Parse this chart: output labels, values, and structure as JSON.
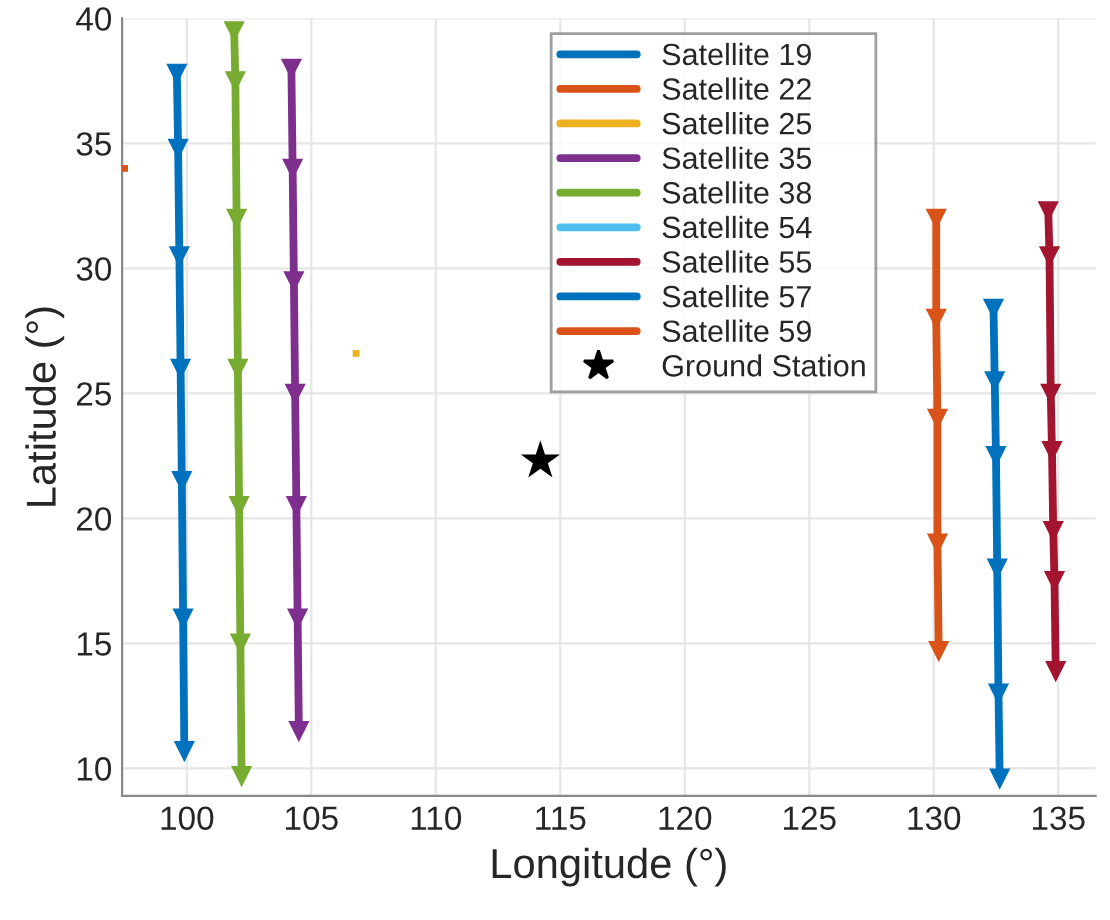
{
  "chart_data": {
    "type": "line",
    "xlabel": "Longitude (°)",
    "ylabel": "Latitude (°)",
    "xlim": [
      97.4,
      136.5
    ],
    "ylim": [
      8.9,
      40
    ],
    "xticks": [
      100,
      105,
      110,
      115,
      120,
      125,
      130,
      135
    ],
    "yticks": [
      10,
      15,
      20,
      25,
      30,
      35,
      40
    ],
    "grid": true,
    "legend": "top right",
    "marker": "triangle",
    "line_style": "solid",
    "series": [
      {
        "name": "Satellite 19",
        "color": "#0072bd",
        "x": [
          99.6,
          99.65,
          99.7,
          99.75,
          99.8,
          99.85,
          99.9
        ],
        "values": [
          37.8,
          34.8,
          30.5,
          26.0,
          21.5,
          16.0,
          10.7
        ]
      },
      {
        "name": "Satellite 22",
        "color": "#d95319",
        "type": "scatter",
        "x": [
          97.5
        ],
        "values": [
          34.0
        ],
        "marker": "square"
      },
      {
        "name": "Satellite 25",
        "color": "#edb120",
        "type": "scatter",
        "x": [
          106.8
        ],
        "values": [
          26.6
        ],
        "marker": "square"
      },
      {
        "name": "Satellite 35",
        "color": "#7e2f8e",
        "x": [
          104.2,
          104.25,
          104.3,
          104.35,
          104.4,
          104.45,
          104.5
        ],
        "values": [
          38.0,
          34.0,
          29.5,
          25.0,
          20.5,
          16.0,
          11.5
        ]
      },
      {
        "name": "Satellite 38",
        "color": "#77ac30",
        "x": [
          101.9,
          101.95,
          102.0,
          102.05,
          102.1,
          102.15,
          102.2
        ],
        "values": [
          39.5,
          37.5,
          32.0,
          26.0,
          20.5,
          15.0,
          9.7
        ]
      },
      {
        "name": "Satellite 54",
        "color": "#4dbeee"
      },
      {
        "name": "Satellite 55",
        "color": "#a2142f",
        "x": [
          134.6,
          134.65,
          134.7,
          134.75,
          134.8,
          134.85,
          134.9
        ],
        "values": [
          32.3,
          30.5,
          25.0,
          22.7,
          19.5,
          17.5,
          13.9
        ]
      },
      {
        "name": "Satellite 57",
        "color": "#0072bd",
        "x": [
          132.4,
          132.45,
          132.5,
          132.55,
          132.6,
          132.65
        ],
        "values": [
          28.4,
          25.5,
          22.5,
          18.0,
          13.0,
          9.6
        ]
      },
      {
        "name": "Satellite 59",
        "color": "#d95318",
        "x": [
          130.1,
          130.1,
          130.15,
          130.15,
          130.2
        ],
        "values": [
          32.0,
          28.0,
          24.0,
          19.0,
          14.7
        ]
      },
      {
        "name": "Ground Station",
        "type": "scatter",
        "color": "#000000",
        "marker": "star",
        "x": [
          114.2
        ],
        "values": [
          22.3
        ]
      }
    ]
  }
}
